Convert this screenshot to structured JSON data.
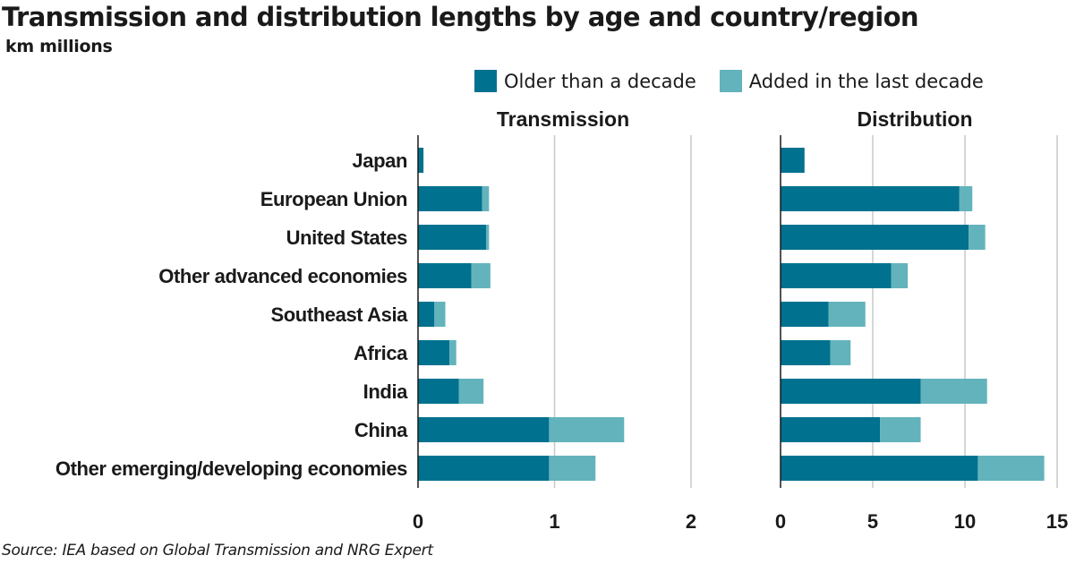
{
  "title": "Transmission and distribution lengths by age and country/region",
  "subtitle": "km millions",
  "source": "Source: IEA based on Global Transmission and NRG Expert",
  "colors": {
    "older": "#00718f",
    "added": "#63b3bc",
    "grid": "#c8c8c8",
    "axis": "#1a1a1a"
  },
  "legend": [
    {
      "label": "Older than a decade",
      "color": "#00718f"
    },
    {
      "label": "Added in the last decade",
      "color": "#63b3bc"
    }
  ],
  "chart_data": [
    {
      "type": "bar",
      "orientation": "horizontal",
      "stacked": true,
      "title": "Transmission",
      "categories": [
        "Japan",
        "European Union",
        "United States",
        "Other advanced economies",
        "Southeast Asia",
        "Africa",
        "India",
        "China",
        "Other emerging/developing economies"
      ],
      "series": [
        {
          "name": "Older than a decade",
          "values": [
            0.04,
            0.47,
            0.5,
            0.39,
            0.12,
            0.23,
            0.3,
            0.96,
            0.96
          ]
        },
        {
          "name": "Added in the last decade",
          "values": [
            0.0,
            0.05,
            0.02,
            0.14,
            0.08,
            0.05,
            0.18,
            0.55,
            0.34
          ]
        }
      ],
      "xlim": [
        0,
        2
      ],
      "xticks": [
        "0",
        "1",
        "2"
      ],
      "grid": true
    },
    {
      "type": "bar",
      "orientation": "horizontal",
      "stacked": true,
      "title": "Distribution",
      "categories": [
        "Japan",
        "European Union",
        "United States",
        "Other advanced economies",
        "Southeast Asia",
        "Africa",
        "India",
        "China",
        "Other emerging/developing economies"
      ],
      "series": [
        {
          "name": "Older than a decade",
          "values": [
            1.3,
            9.7,
            10.2,
            6.0,
            2.6,
            2.7,
            7.6,
            5.4,
            10.7
          ]
        },
        {
          "name": "Added in the last decade",
          "values": [
            0.0,
            0.7,
            0.9,
            0.9,
            2.0,
            1.1,
            3.6,
            2.2,
            3.6
          ]
        }
      ],
      "xlim": [
        0,
        15
      ],
      "xticks": [
        "0",
        "5",
        "10",
        "15"
      ],
      "grid": true
    }
  ]
}
